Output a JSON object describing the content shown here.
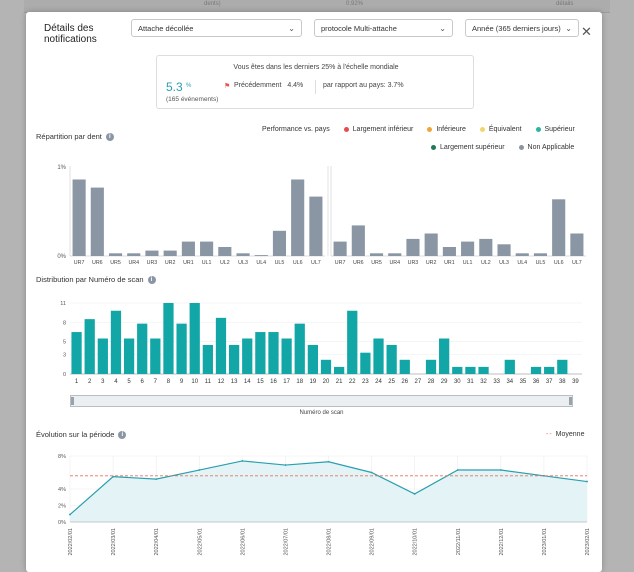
{
  "background": {
    "strip_texts": [
      "dents)",
      "0.92%",
      "détails"
    ]
  },
  "modal": {
    "title": "Détails des notifications",
    "close_icon": "close-icon",
    "filters": [
      {
        "value": "Attache décollée"
      },
      {
        "value": "protocole Multi-attache"
      },
      {
        "value": "Année (365 derniers jours)"
      }
    ]
  },
  "summary": {
    "headline": "Vous êtes dans les derniers 25% à l'échelle mondiale",
    "value": "5.3",
    "unit": "%",
    "events": "(165 événements)",
    "previous_label": "Précédemment",
    "previous_value": "4.4%",
    "country": "par rapport au pays: 3.7%",
    "flag_color": "#e55353"
  },
  "tooth_section": {
    "title": "Répartition par dent",
    "legend_title": "Performance vs. pays",
    "legend_items": [
      {
        "label": "Largement inférieur",
        "color": "#e84c4c"
      },
      {
        "label": "Inférieure",
        "color": "#f2a33a"
      },
      {
        "label": "Équivalent",
        "color": "#f0d66b"
      },
      {
        "label": "Supérieur",
        "color": "#2bb5a0"
      },
      {
        "label": "Largement supérieur",
        "color": "#1f7a55"
      },
      {
        "label": "Non Applicable",
        "color": "#8e959c"
      }
    ]
  },
  "scan_section": {
    "title": "Distribution par Numéro de scan",
    "slider_label": "Numéro de scan"
  },
  "period_section": {
    "title": "Évolution sur la période",
    "legend_label": "Moyenne"
  },
  "chart_data": [
    {
      "type": "bar",
      "title": "Répartition par dent",
      "ytick_labels": [
        "1%",
        "0%"
      ],
      "ylim": [
        0,
        1
      ],
      "color": "#8a96a3",
      "series": [
        {
          "categories": [
            "UR7",
            "UR6",
            "UR5",
            "UR4",
            "UR3",
            "UR2",
            "UR1",
            "UL1",
            "UL2",
            "UL3",
            "UL4",
            "UL5",
            "UL6",
            "UL7"
          ],
          "values": [
            0.85,
            0.76,
            0.03,
            0.03,
            0.06,
            0.06,
            0.16,
            0.16,
            0.1,
            0.03,
            0.01,
            0.28,
            0.85,
            0.66
          ]
        },
        {
          "categories": [
            "UR7",
            "UR6",
            "UR5",
            "UR4",
            "UR3",
            "UR2",
            "UR1",
            "UL1",
            "UL2",
            "UL3",
            "UL4",
            "UL5",
            "UL6",
            "UL7"
          ],
          "values": [
            0.16,
            0.34,
            0.03,
            0.03,
            0.19,
            0.25,
            0.1,
            0.16,
            0.19,
            0.13,
            0.03,
            0.03,
            0.63,
            0.25
          ]
        }
      ]
    },
    {
      "type": "bar",
      "title": "Distribution par Numéro de scan",
      "xlabel": "Numéro de scan",
      "ylim": [
        0,
        11
      ],
      "ytick_labels": [
        "11",
        "8",
        "5",
        "3",
        "0"
      ],
      "yticks": [
        11,
        8,
        5,
        3,
        0
      ],
      "color": "#12a6a6",
      "categories": [
        "1",
        "2",
        "3",
        "4",
        "5",
        "6",
        "7",
        "8",
        "9",
        "10",
        "11",
        "12",
        "13",
        "14",
        "15",
        "16",
        "17",
        "18",
        "19",
        "20",
        "21",
        "22",
        "23",
        "24",
        "25",
        "26",
        "27",
        "28",
        "29",
        "30",
        "31",
        "32",
        "33",
        "34",
        "35",
        "36",
        "37",
        "38",
        "39"
      ],
      "values": [
        6.5,
        8.5,
        5.5,
        9.8,
        5.5,
        7.8,
        5.5,
        11,
        7.8,
        11,
        4.5,
        8.7,
        4.5,
        5.5,
        6.5,
        6.5,
        5.5,
        7.8,
        4.5,
        2.2,
        1.1,
        9.8,
        3.3,
        5.5,
        4.5,
        2.2,
        0,
        2.2,
        5.5,
        1.1,
        1.1,
        1.1,
        0,
        2.2,
        0,
        1.1,
        1.1,
        2.2,
        0
      ]
    },
    {
      "type": "line",
      "title": "Évolution sur la période",
      "ylim": [
        0,
        8
      ],
      "ytick_labels": [
        "8%",
        "4%",
        "2%",
        "0%"
      ],
      "yticks": [
        8,
        4,
        2,
        0
      ],
      "x": [
        "2022/02/01",
        "2022/03/01",
        "2022/04/01",
        "2022/05/01",
        "2022/06/01",
        "2022/07/01",
        "2022/08/01",
        "2022/09/01",
        "2022/10/01",
        "2022/11/01",
        "2022/12/01",
        "2023/01/01",
        "2023/02/01"
      ],
      "series": [
        {
          "values": [
            0.9,
            5.5,
            5.2,
            6.3,
            7.4,
            6.9,
            7.3,
            6.0,
            3.4,
            6.3,
            6.3,
            5.6,
            4.9
          ]
        },
        {
          "name": "Moyenne",
          "values": [
            5.6,
            5.6,
            5.6,
            5.6,
            5.6,
            5.6,
            5.6,
            5.6,
            5.6,
            5.6,
            5.6,
            5.6,
            5.6
          ],
          "color": "#e6705b"
        }
      ],
      "line_color": "#2a9fb0"
    }
  ]
}
